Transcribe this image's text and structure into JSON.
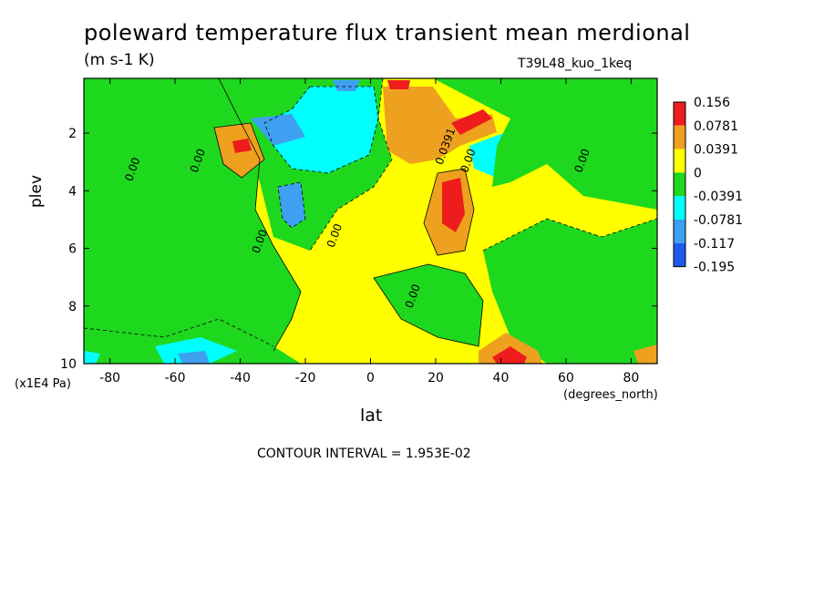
{
  "title": "poleward temperature flux transient mean merdional",
  "units": "(m s-1 K)",
  "dataset": "T39L48_kuo_1keq",
  "contour_interval": "CONTOUR INTERVAL = 1.953E-02",
  "colors": {
    "red": "#ee1c1c",
    "orange": "#eea11e",
    "yellow": "#ffff00",
    "green": "#1ed81e",
    "cyan": "#00ffff",
    "light_blue": "#3ea0f0",
    "blue": "#1e5af0"
  },
  "chart_data": {
    "type": "heatmap",
    "title": "poleward temperature flux transient mean merdional",
    "xlabel": "lat",
    "ylabel": "plev",
    "x_unit": "(degrees_north)",
    "y_unit": "(x1E4 Pa)",
    "xlim": [
      -88,
      88
    ],
    "ylim": [
      10,
      0.1
    ],
    "y_inverted": true,
    "x_ticks": [
      -80,
      -60,
      -40,
      -20,
      0,
      20,
      40,
      60,
      80
    ],
    "y_ticks": [
      2,
      4,
      6,
      8,
      10
    ],
    "legend": {
      "placement": "right",
      "levels": [
        "0.156",
        "0.0781",
        "0.0391",
        "0",
        "-0.0391",
        "-0.0781",
        "-0.117",
        "-0.195"
      ]
    },
    "contour_labels": [
      {
        "text": "0.00",
        "lat": -72,
        "plev": 3.3
      },
      {
        "text": "0.00",
        "lat": -52,
        "plev": 3.0
      },
      {
        "text": "0.00",
        "lat": -33,
        "plev": 5.8
      },
      {
        "text": "0.00",
        "lat": -10,
        "plev": 5.6
      },
      {
        "text": "0.00",
        "lat": 14,
        "plev": 7.7
      },
      {
        "text": "0.0391",
        "lat": 24,
        "plev": 2.5
      },
      {
        "text": "0.00",
        "lat": 31,
        "plev": 3.0
      },
      {
        "text": "0.00",
        "lat": 66,
        "plev": 3.0
      }
    ],
    "regions": [
      {
        "level": "0",
        "lat": -60,
        "plev": 2.5
      },
      {
        "level": "-0.0391",
        "lat": -70,
        "plev": 6.0
      },
      {
        "level": "0.0391",
        "lat": -40,
        "plev": 2.5
      },
      {
        "level": "0.0781",
        "lat": -40,
        "plev": 2.5
      },
      {
        "level": "-0.0781",
        "lat": -10,
        "plev": 2.5
      },
      {
        "level": "-0.117",
        "lat": -33,
        "plev": 1.8
      },
      {
        "level": "-0.117",
        "lat": -25,
        "plev": 4.3
      },
      {
        "level": "0.0391",
        "lat": 12,
        "plev": 2.0
      },
      {
        "level": "0.156",
        "lat": 30,
        "plev": 1.8
      },
      {
        "level": "0.156",
        "lat": 25,
        "plev": 4.0
      },
      {
        "level": "0",
        "lat": 10,
        "plev": 6.0
      },
      {
        "level": "-0.0391",
        "lat": 70,
        "plev": 7.0
      },
      {
        "level": "0.156",
        "lat": 42,
        "plev": 9.9
      },
      {
        "level": "-0.117",
        "lat": -45,
        "plev": 9.8
      }
    ]
  }
}
